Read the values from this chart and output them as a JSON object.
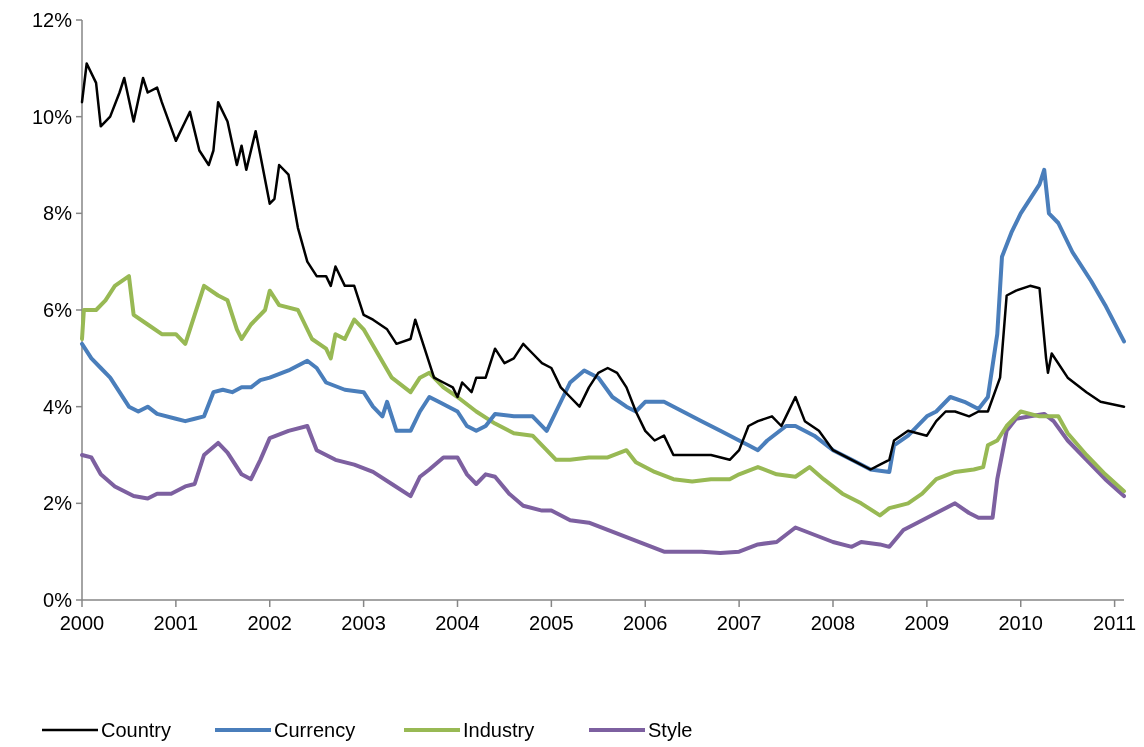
{
  "chart_data": {
    "type": "line",
    "xlim": [
      2000,
      2011.1
    ],
    "xticks": [
      2000,
      2001,
      2002,
      2003,
      2004,
      2005,
      2006,
      2007,
      2008,
      2009,
      2010,
      2011
    ],
    "ylim": [
      0,
      12
    ],
    "yticks": [
      {
        "value": 0,
        "label": "0%"
      },
      {
        "value": 2,
        "label": "2%"
      },
      {
        "value": 4,
        "label": "4%"
      },
      {
        "value": 6,
        "label": "6%"
      },
      {
        "value": 8,
        "label": "8%"
      },
      {
        "value": 10,
        "label": "10%"
      },
      {
        "value": 12,
        "label": "12%"
      }
    ],
    "grid": false,
    "legend": "bottom",
    "marker": "none",
    "line_style": "solid",
    "series": [
      {
        "name": "Country",
        "color": "#000000",
        "x": [
          2000.0,
          2000.05,
          2000.15,
          2000.2,
          2000.3,
          2000.4,
          2000.45,
          2000.55,
          2000.65,
          2000.7,
          2000.8,
          2000.85,
          2001.0,
          2001.1,
          2001.15,
          2001.25,
          2001.35,
          2001.4,
          2001.45,
          2001.55,
          2001.65,
          2001.7,
          2001.75,
          2001.85,
          2001.9,
          2002.0,
          2002.05,
          2002.1,
          2002.2,
          2002.3,
          2002.4,
          2002.5,
          2002.6,
          2002.65,
          2002.7,
          2002.8,
          2002.9,
          2003.0,
          2003.1,
          2003.25,
          2003.35,
          2003.5,
          2003.55,
          2003.65,
          2003.75,
          2003.85,
          2003.95,
          2004.0,
          2004.05,
          2004.15,
          2004.2,
          2004.3,
          2004.4,
          2004.5,
          2004.6,
          2004.7,
          2004.8,
          2004.9,
          2005.0,
          2005.1,
          2005.2,
          2005.3,
          2005.4,
          2005.5,
          2005.6,
          2005.7,
          2005.8,
          2005.9,
          2006.0,
          2006.1,
          2006.2,
          2006.3,
          2006.5,
          2006.7,
          2006.9,
          2007.0,
          2007.1,
          2007.2,
          2007.35,
          2007.45,
          2007.5,
          2007.6,
          2007.7,
          2007.85,
          2008.0,
          2008.2,
          2008.4,
          2008.5,
          2008.6,
          2008.65,
          2008.8,
          2009.0,
          2009.1,
          2009.2,
          2009.3,
          2009.45,
          2009.55,
          2009.65,
          2009.78,
          2009.85,
          2009.95,
          2010.1,
          2010.2,
          2010.27,
          2010.29,
          2010.33,
          2010.5,
          2010.7,
          2010.85,
          2011.1
        ],
        "values": [
          10.3,
          11.1,
          10.7,
          9.8,
          10.0,
          10.5,
          10.8,
          9.9,
          10.8,
          10.5,
          10.6,
          10.3,
          9.5,
          9.9,
          10.1,
          9.3,
          9.0,
          9.3,
          10.3,
          9.9,
          9.0,
          9.4,
          8.9,
          9.7,
          9.2,
          8.2,
          8.3,
          9.0,
          8.8,
          7.7,
          7.0,
          6.7,
          6.7,
          6.5,
          6.9,
          6.5,
          6.5,
          5.9,
          5.8,
          5.6,
          5.3,
          5.4,
          5.8,
          5.2,
          4.6,
          4.5,
          4.4,
          4.2,
          4.5,
          4.3,
          4.6,
          4.6,
          5.2,
          4.9,
          5.0,
          5.3,
          5.1,
          4.9,
          4.8,
          4.4,
          4.2,
          4.0,
          4.4,
          4.7,
          4.8,
          4.7,
          4.4,
          3.9,
          3.5,
          3.3,
          3.4,
          3.0,
          3.0,
          3.0,
          2.9,
          3.1,
          3.6,
          3.7,
          3.8,
          3.6,
          3.8,
          4.2,
          3.7,
          3.5,
          3.1,
          2.9,
          2.7,
          2.8,
          2.9,
          3.3,
          3.5,
          3.4,
          3.7,
          3.9,
          3.9,
          3.8,
          3.9,
          3.9,
          4.6,
          6.3,
          6.4,
          6.5,
          6.45,
          5.0,
          4.7,
          5.1,
          4.6,
          4.3,
          4.1,
          4.0
        ]
      },
      {
        "name": "Currency",
        "color": "#4a7ebb",
        "x": [
          2000.0,
          2000.1,
          2000.2,
          2000.3,
          2000.4,
          2000.5,
          2000.6,
          2000.7,
          2000.8,
          2001.0,
          2001.1,
          2001.2,
          2001.3,
          2001.4,
          2001.5,
          2001.6,
          2001.7,
          2001.8,
          2001.9,
          2002.0,
          2002.2,
          2002.4,
          2002.5,
          2002.6,
          2002.8,
          2003.0,
          2003.1,
          2003.2,
          2003.25,
          2003.35,
          2003.5,
          2003.6,
          2003.7,
          2003.8,
          2004.0,
          2004.1,
          2004.2,
          2004.3,
          2004.4,
          2004.6,
          2004.8,
          2004.95,
          2005.05,
          2005.2,
          2005.35,
          2005.5,
          2005.65,
          2005.8,
          2005.9,
          2006.0,
          2006.2,
          2006.4,
          2006.6,
          2006.8,
          2007.0,
          2007.1,
          2007.2,
          2007.3,
          2007.5,
          2007.6,
          2007.8,
          2008.0,
          2008.2,
          2008.4,
          2008.6,
          2008.65,
          2008.8,
          2009.0,
          2009.1,
          2009.25,
          2009.4,
          2009.55,
          2009.65,
          2009.75,
          2009.8,
          2009.9,
          2010.0,
          2010.1,
          2010.2,
          2010.25,
          2010.3,
          2010.4,
          2010.55,
          2010.75,
          2010.9,
          2011.1
        ],
        "values": [
          5.3,
          5.0,
          4.8,
          4.6,
          4.3,
          4.0,
          3.9,
          4.0,
          3.85,
          3.75,
          3.7,
          3.75,
          3.8,
          4.3,
          4.35,
          4.3,
          4.4,
          4.4,
          4.55,
          4.6,
          4.75,
          4.95,
          4.8,
          4.5,
          4.35,
          4.3,
          4.0,
          3.8,
          4.1,
          3.5,
          3.5,
          3.9,
          4.2,
          4.1,
          3.9,
          3.6,
          3.5,
          3.6,
          3.85,
          3.8,
          3.8,
          3.5,
          3.9,
          4.5,
          4.75,
          4.6,
          4.2,
          4.0,
          3.9,
          4.1,
          4.1,
          3.9,
          3.7,
          3.5,
          3.3,
          3.2,
          3.1,
          3.3,
          3.6,
          3.6,
          3.4,
          3.1,
          2.9,
          2.7,
          2.65,
          3.2,
          3.4,
          3.8,
          3.9,
          4.2,
          4.1,
          3.95,
          4.2,
          5.5,
          7.1,
          7.6,
          8.0,
          8.3,
          8.6,
          8.9,
          8.0,
          7.8,
          7.2,
          6.6,
          6.1,
          5.35
        ]
      },
      {
        "name": "Industry",
        "color": "#98b954",
        "x": [
          2000.0,
          2000.02,
          2000.15,
          2000.25,
          2000.35,
          2000.5,
          2000.55,
          2000.7,
          2000.85,
          2001.0,
          2001.1,
          2001.2,
          2001.3,
          2001.45,
          2001.55,
          2001.65,
          2001.7,
          2001.8,
          2001.95,
          2002.0,
          2002.1,
          2002.3,
          2002.45,
          2002.6,
          2002.65,
          2002.7,
          2002.8,
          2002.9,
          2003.0,
          2003.15,
          2003.3,
          2003.5,
          2003.6,
          2003.7,
          2003.85,
          2004.0,
          2004.2,
          2004.4,
          2004.6,
          2004.8,
          2004.95,
          2005.05,
          2005.2,
          2005.4,
          2005.6,
          2005.8,
          2005.9,
          2006.1,
          2006.3,
          2006.5,
          2006.7,
          2006.9,
          2007.0,
          2007.2,
          2007.4,
          2007.6,
          2007.75,
          2007.9,
          2008.1,
          2008.3,
          2008.5,
          2008.6,
          2008.8,
          2008.95,
          2009.1,
          2009.3,
          2009.5,
          2009.6,
          2009.65,
          2009.75,
          2009.85,
          2010.0,
          2010.2,
          2010.4,
          2010.5,
          2010.7,
          2010.9,
          2011.1
        ],
        "values": [
          5.4,
          6.0,
          6.0,
          6.2,
          6.5,
          6.7,
          5.9,
          5.7,
          5.5,
          5.5,
          5.3,
          5.9,
          6.5,
          6.3,
          6.2,
          5.6,
          5.4,
          5.7,
          6.0,
          6.4,
          6.1,
          6.0,
          5.4,
          5.2,
          5.0,
          5.5,
          5.4,
          5.8,
          5.6,
          5.1,
          4.6,
          4.3,
          4.6,
          4.7,
          4.4,
          4.2,
          3.9,
          3.65,
          3.45,
          3.4,
          3.1,
          2.9,
          2.9,
          2.95,
          2.95,
          3.1,
          2.85,
          2.65,
          2.5,
          2.45,
          2.5,
          2.5,
          2.6,
          2.75,
          2.6,
          2.55,
          2.75,
          2.5,
          2.2,
          2.0,
          1.75,
          1.9,
          2.0,
          2.2,
          2.5,
          2.65,
          2.7,
          2.75,
          3.2,
          3.3,
          3.6,
          3.9,
          3.8,
          3.8,
          3.45,
          3.0,
          2.6,
          2.25
        ]
      },
      {
        "name": "Style",
        "color": "#7d60a0",
        "x": [
          2000.0,
          2000.1,
          2000.2,
          2000.35,
          2000.55,
          2000.7,
          2000.8,
          2000.95,
          2001.1,
          2001.2,
          2001.3,
          2001.45,
          2001.55,
          2001.7,
          2001.8,
          2001.9,
          2002.0,
          2002.2,
          2002.4,
          2002.5,
          2002.7,
          2002.9,
          2003.1,
          2003.3,
          2003.5,
          2003.6,
          2003.7,
          2003.85,
          2004.0,
          2004.1,
          2004.2,
          2004.3,
          2004.4,
          2004.55,
          2004.7,
          2004.9,
          2005.0,
          2005.2,
          2005.4,
          2005.6,
          2005.8,
          2006.0,
          2006.2,
          2006.4,
          2006.6,
          2006.8,
          2007.0,
          2007.2,
          2007.4,
          2007.6,
          2007.8,
          2008.0,
          2008.2,
          2008.3,
          2008.5,
          2008.6,
          2008.75,
          2008.9,
          2009.1,
          2009.3,
          2009.45,
          2009.55,
          2009.7,
          2009.75,
          2009.85,
          2009.95,
          2010.1,
          2010.25,
          2010.35,
          2010.5,
          2010.7,
          2010.9,
          2011.1
        ],
        "values": [
          3.0,
          2.95,
          2.6,
          2.35,
          2.15,
          2.1,
          2.2,
          2.2,
          2.35,
          2.4,
          3.0,
          3.25,
          3.05,
          2.6,
          2.5,
          2.9,
          3.35,
          3.5,
          3.6,
          3.1,
          2.9,
          2.8,
          2.65,
          2.4,
          2.15,
          2.55,
          2.7,
          2.95,
          2.95,
          2.6,
          2.4,
          2.6,
          2.55,
          2.2,
          1.95,
          1.85,
          1.85,
          1.65,
          1.6,
          1.45,
          1.3,
          1.15,
          1.0,
          1.0,
          1.0,
          0.97,
          1.0,
          1.15,
          1.2,
          1.5,
          1.35,
          1.2,
          1.1,
          1.2,
          1.15,
          1.1,
          1.45,
          1.6,
          1.8,
          2.0,
          1.8,
          1.7,
          1.7,
          2.5,
          3.5,
          3.75,
          3.8,
          3.85,
          3.7,
          3.3,
          2.9,
          2.5,
          2.15
        ]
      }
    ]
  }
}
